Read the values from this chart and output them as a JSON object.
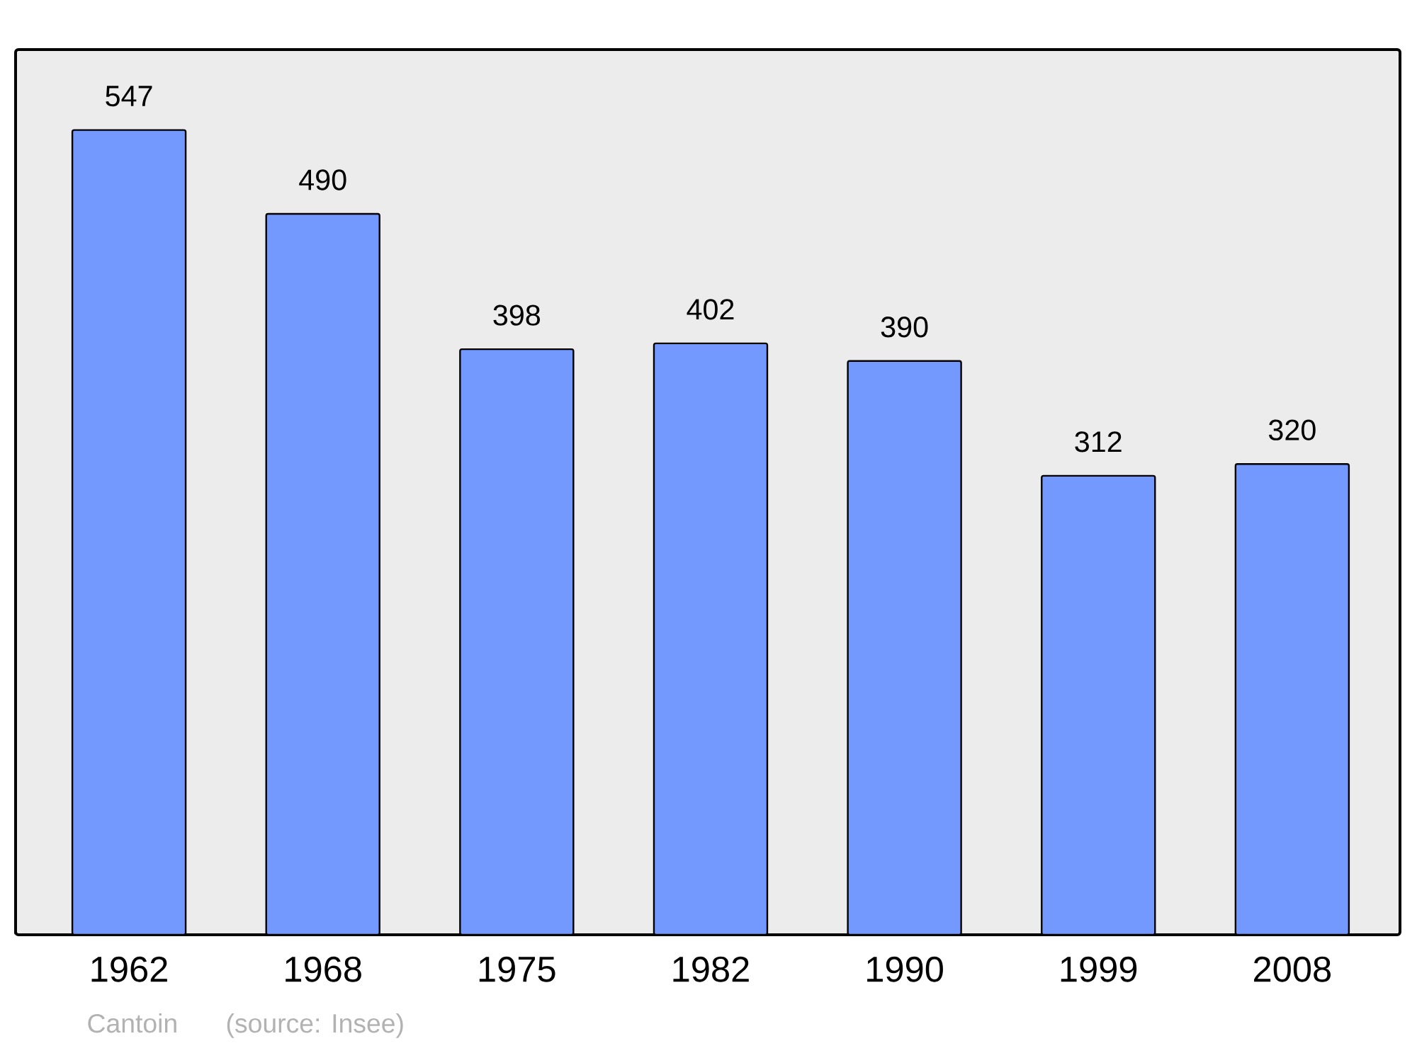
{
  "chart_data": {
    "type": "bar",
    "categories": [
      "1962",
      "1968",
      "1975",
      "1982",
      "1990",
      "1999",
      "2008"
    ],
    "values": [
      547,
      490,
      398,
      402,
      390,
      312,
      320
    ],
    "color": "#7399ff",
    "data_labels": true,
    "annotations": [
      "Cantoin",
      "(source: Insee)"
    ]
  }
}
